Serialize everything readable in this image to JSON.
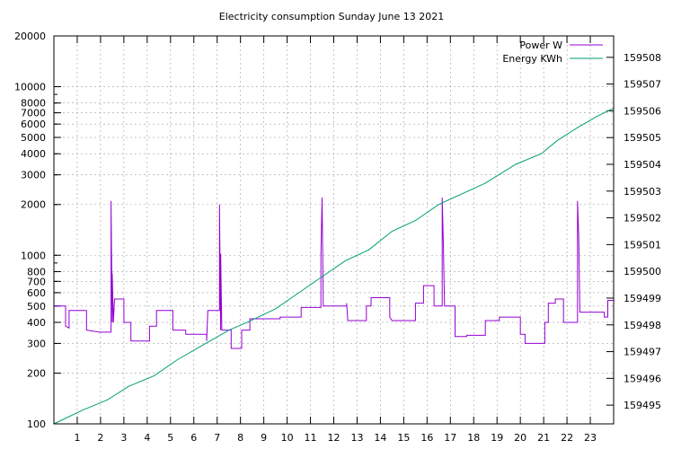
{
  "chart_data": {
    "type": "line",
    "title": "Electricity consumption Sunday June 13 2021",
    "x_ticks": [
      "1",
      "2",
      "3",
      "4",
      "5",
      "6",
      "7",
      "8",
      "9",
      "10",
      "11",
      "12",
      "13",
      "14",
      "15",
      "16",
      "17",
      "18",
      "19",
      "20",
      "21",
      "22",
      "23"
    ],
    "xlim": [
      0,
      24
    ],
    "y_scale": "log",
    "ylim": [
      100,
      20000
    ],
    "y_ticks": [
      "100",
      "200",
      "300",
      "400",
      "500",
      "600",
      "700",
      "800",
      "1000",
      "2000",
      "3000",
      "4000",
      "5000",
      "6000",
      "7000",
      "8000",
      "10000",
      "20000"
    ],
    "y2lim": [
      159494.3,
      159508.8
    ],
    "y2_ticks": [
      "159495",
      "159496",
      "159497",
      "159498",
      "159499",
      "159500",
      "159501",
      "159502",
      "159503",
      "159504",
      "159505",
      "159506",
      "159507",
      "159508"
    ],
    "grid": true,
    "legend_position": "top-right",
    "series": [
      {
        "name": "Power W",
        "color": "#9400d3",
        "axis": "left",
        "points": [
          [
            0,
            500
          ],
          [
            0.5,
            500
          ],
          [
            0.5,
            380
          ],
          [
            0.65,
            370
          ],
          [
            0.65,
            470
          ],
          [
            1.4,
            470
          ],
          [
            1.4,
            360
          ],
          [
            1.95,
            350
          ],
          [
            2.45,
            350
          ],
          [
            2.45,
            2100
          ],
          [
            2.5,
            400
          ],
          [
            2.5,
            780
          ],
          [
            2.55,
            400
          ],
          [
            2.6,
            550
          ],
          [
            3,
            550
          ],
          [
            3,
            400
          ],
          [
            3.3,
            400
          ],
          [
            3.3,
            310
          ],
          [
            4.1,
            310
          ],
          [
            4.1,
            380
          ],
          [
            4.4,
            380
          ],
          [
            4.4,
            470
          ],
          [
            5.1,
            470
          ],
          [
            5.1,
            360
          ],
          [
            5.65,
            360
          ],
          [
            5.65,
            340
          ],
          [
            6.55,
            340
          ],
          [
            6.55,
            310
          ],
          [
            6.6,
            470
          ],
          [
            7.1,
            470
          ],
          [
            7.1,
            2000
          ],
          [
            7.15,
            360
          ],
          [
            7.15,
            1020
          ],
          [
            7.2,
            360
          ],
          [
            7.6,
            360
          ],
          [
            7.6,
            280
          ],
          [
            8.05,
            280
          ],
          [
            8.05,
            360
          ],
          [
            8.4,
            360
          ],
          [
            8.4,
            420
          ],
          [
            9.7,
            420
          ],
          [
            9.7,
            430
          ],
          [
            10.6,
            430
          ],
          [
            10.6,
            490
          ],
          [
            11.45,
            490
          ],
          [
            11.45,
            1020
          ],
          [
            11.5,
            2200
          ],
          [
            11.55,
            500
          ],
          [
            12.55,
            500
          ],
          [
            12.55,
            520
          ],
          [
            12.6,
            410
          ],
          [
            13.4,
            410
          ],
          [
            13.4,
            500
          ],
          [
            13.6,
            500
          ],
          [
            13.6,
            560
          ],
          [
            14.4,
            560
          ],
          [
            14.4,
            430
          ],
          [
            14.5,
            410
          ],
          [
            15.5,
            410
          ],
          [
            15.5,
            520
          ],
          [
            15.85,
            520
          ],
          [
            15.85,
            660
          ],
          [
            16.3,
            660
          ],
          [
            16.3,
            500
          ],
          [
            16.65,
            500
          ],
          [
            16.65,
            2200
          ],
          [
            16.7,
            1150
          ],
          [
            16.75,
            500
          ],
          [
            17.2,
            500
          ],
          [
            17.2,
            330
          ],
          [
            17.7,
            330
          ],
          [
            17.7,
            335
          ],
          [
            18.5,
            335
          ],
          [
            18.5,
            410
          ],
          [
            19.1,
            410
          ],
          [
            19.1,
            430
          ],
          [
            20,
            430
          ],
          [
            20,
            340
          ],
          [
            20.2,
            340
          ],
          [
            20.2,
            300
          ],
          [
            21.05,
            300
          ],
          [
            21.05,
            400
          ],
          [
            21.2,
            400
          ],
          [
            21.2,
            520
          ],
          [
            21.5,
            520
          ],
          [
            21.5,
            550
          ],
          [
            21.85,
            550
          ],
          [
            21.85,
            400
          ],
          [
            22.45,
            400
          ],
          [
            22.45,
            2100
          ],
          [
            22.5,
            1320
          ],
          [
            22.55,
            460
          ],
          [
            23.6,
            460
          ],
          [
            23.6,
            430
          ],
          [
            23.75,
            430
          ],
          [
            23.75,
            540
          ],
          [
            24,
            540
          ]
        ]
      },
      {
        "name": "Energy KWh",
        "color": "#009e73",
        "axis": "right",
        "points": [
          [
            0,
            159494.3
          ],
          [
            1.2,
            159494.8
          ],
          [
            2.3,
            159495.2
          ],
          [
            3.2,
            159495.7
          ],
          [
            4.3,
            159496.1
          ],
          [
            5.3,
            159496.7
          ],
          [
            6.3,
            159497.2
          ],
          [
            7.5,
            159497.8
          ],
          [
            8.3,
            159498.1
          ],
          [
            9.5,
            159498.6
          ],
          [
            10.5,
            159499.2
          ],
          [
            11.5,
            159499.8
          ],
          [
            12.5,
            159500.4
          ],
          [
            13.5,
            159500.8
          ],
          [
            14.5,
            159501.5
          ],
          [
            15.5,
            159501.9
          ],
          [
            16.5,
            159502.5
          ],
          [
            17.5,
            159502.9
          ],
          [
            18.5,
            159503.3
          ],
          [
            19.8,
            159504.0
          ],
          [
            20.9,
            159504.4
          ],
          [
            21.6,
            159504.9
          ],
          [
            22.5,
            159505.4
          ],
          [
            23.3,
            159505.8
          ],
          [
            24,
            159506.1
          ]
        ]
      }
    ]
  }
}
